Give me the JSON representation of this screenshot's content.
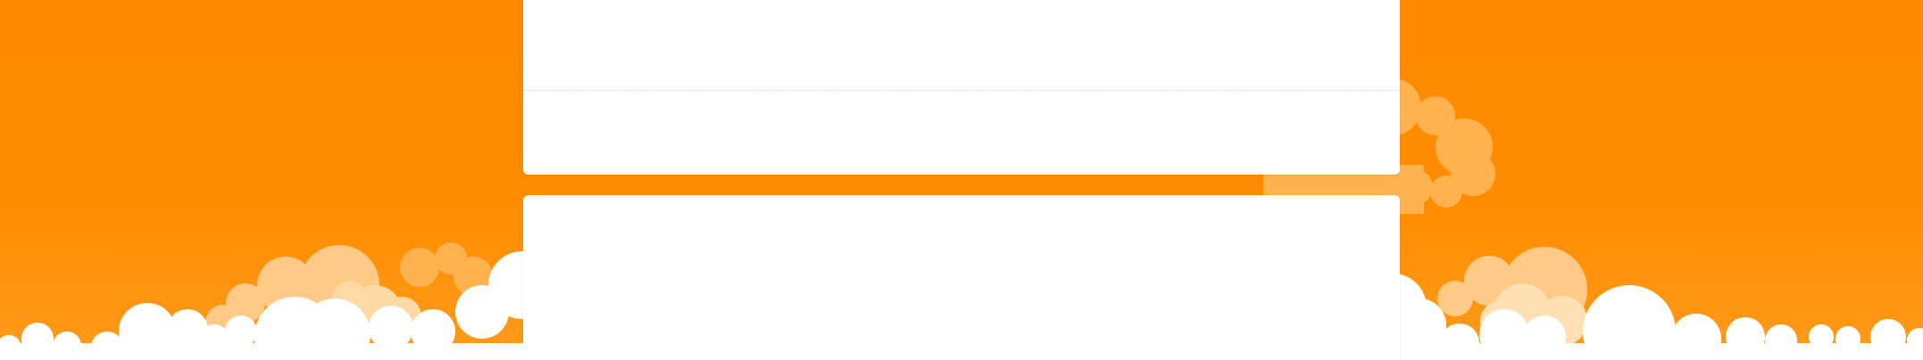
{
  "colors": {
    "background": "#ff8c00",
    "card": "#ffffff",
    "cloud_light": "#ffffff",
    "cloud_mid": "#ffd9a3",
    "cloud_dark": "#ffb24d"
  },
  "cards": [
    {
      "name": "top-card",
      "content": ""
    },
    {
      "name": "bottom-card",
      "content": ""
    }
  ],
  "decor": {
    "cloud_icon": "cloud-icon"
  }
}
